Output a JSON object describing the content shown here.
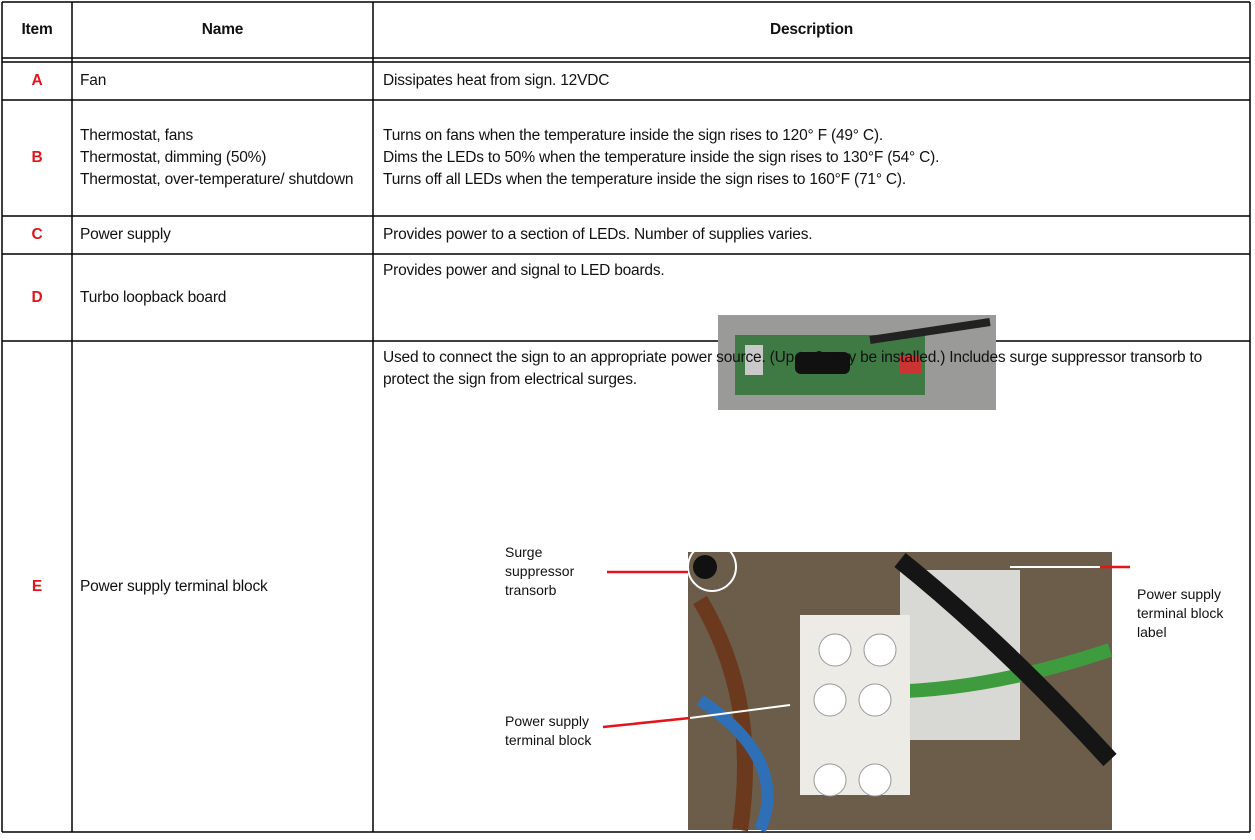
{
  "table": {
    "headers": [
      "Item",
      "Name",
      "Description"
    ],
    "rows": [
      {
        "item": "A",
        "name": [
          "Fan"
        ],
        "description": [
          "Dissipates heat from sign. 12VDC"
        ]
      },
      {
        "item": "B",
        "name": [
          "Thermostat, fans",
          "Thermostat, dimming (50%)",
          "Thermostat, over-temperature/ shutdown"
        ],
        "description": [
          "Turns on fans when the temperature inside the sign rises to 120° F (49° C).",
          "Dims the LEDs to 50% when the temperature inside the sign rises to 130°F (54° C).",
          "Turns off all LEDs when the temperature inside the sign rises to 160°F (71° C)."
        ]
      },
      {
        "item": "C",
        "name": [
          "Power supply"
        ],
        "description": [
          "Provides power to a section of LEDs. Number of supplies varies."
        ]
      },
      {
        "item": "D",
        "name": [
          "Turbo loopback board"
        ],
        "description": [
          "Provides power and signal to LED boards."
        ]
      },
      {
        "item": "E",
        "name": [
          "Power supply terminal block"
        ],
        "description": [
          "Used to connect the sign to an appropriate power source. (Up to 2 may be installed.) Includes surge suppressor transorb to protect the sign from electrical surges."
        ],
        "callouts": [
          "Surge suppressor transorb",
          "Power supply terminal block",
          "Power supply terminal block label"
        ]
      }
    ]
  }
}
